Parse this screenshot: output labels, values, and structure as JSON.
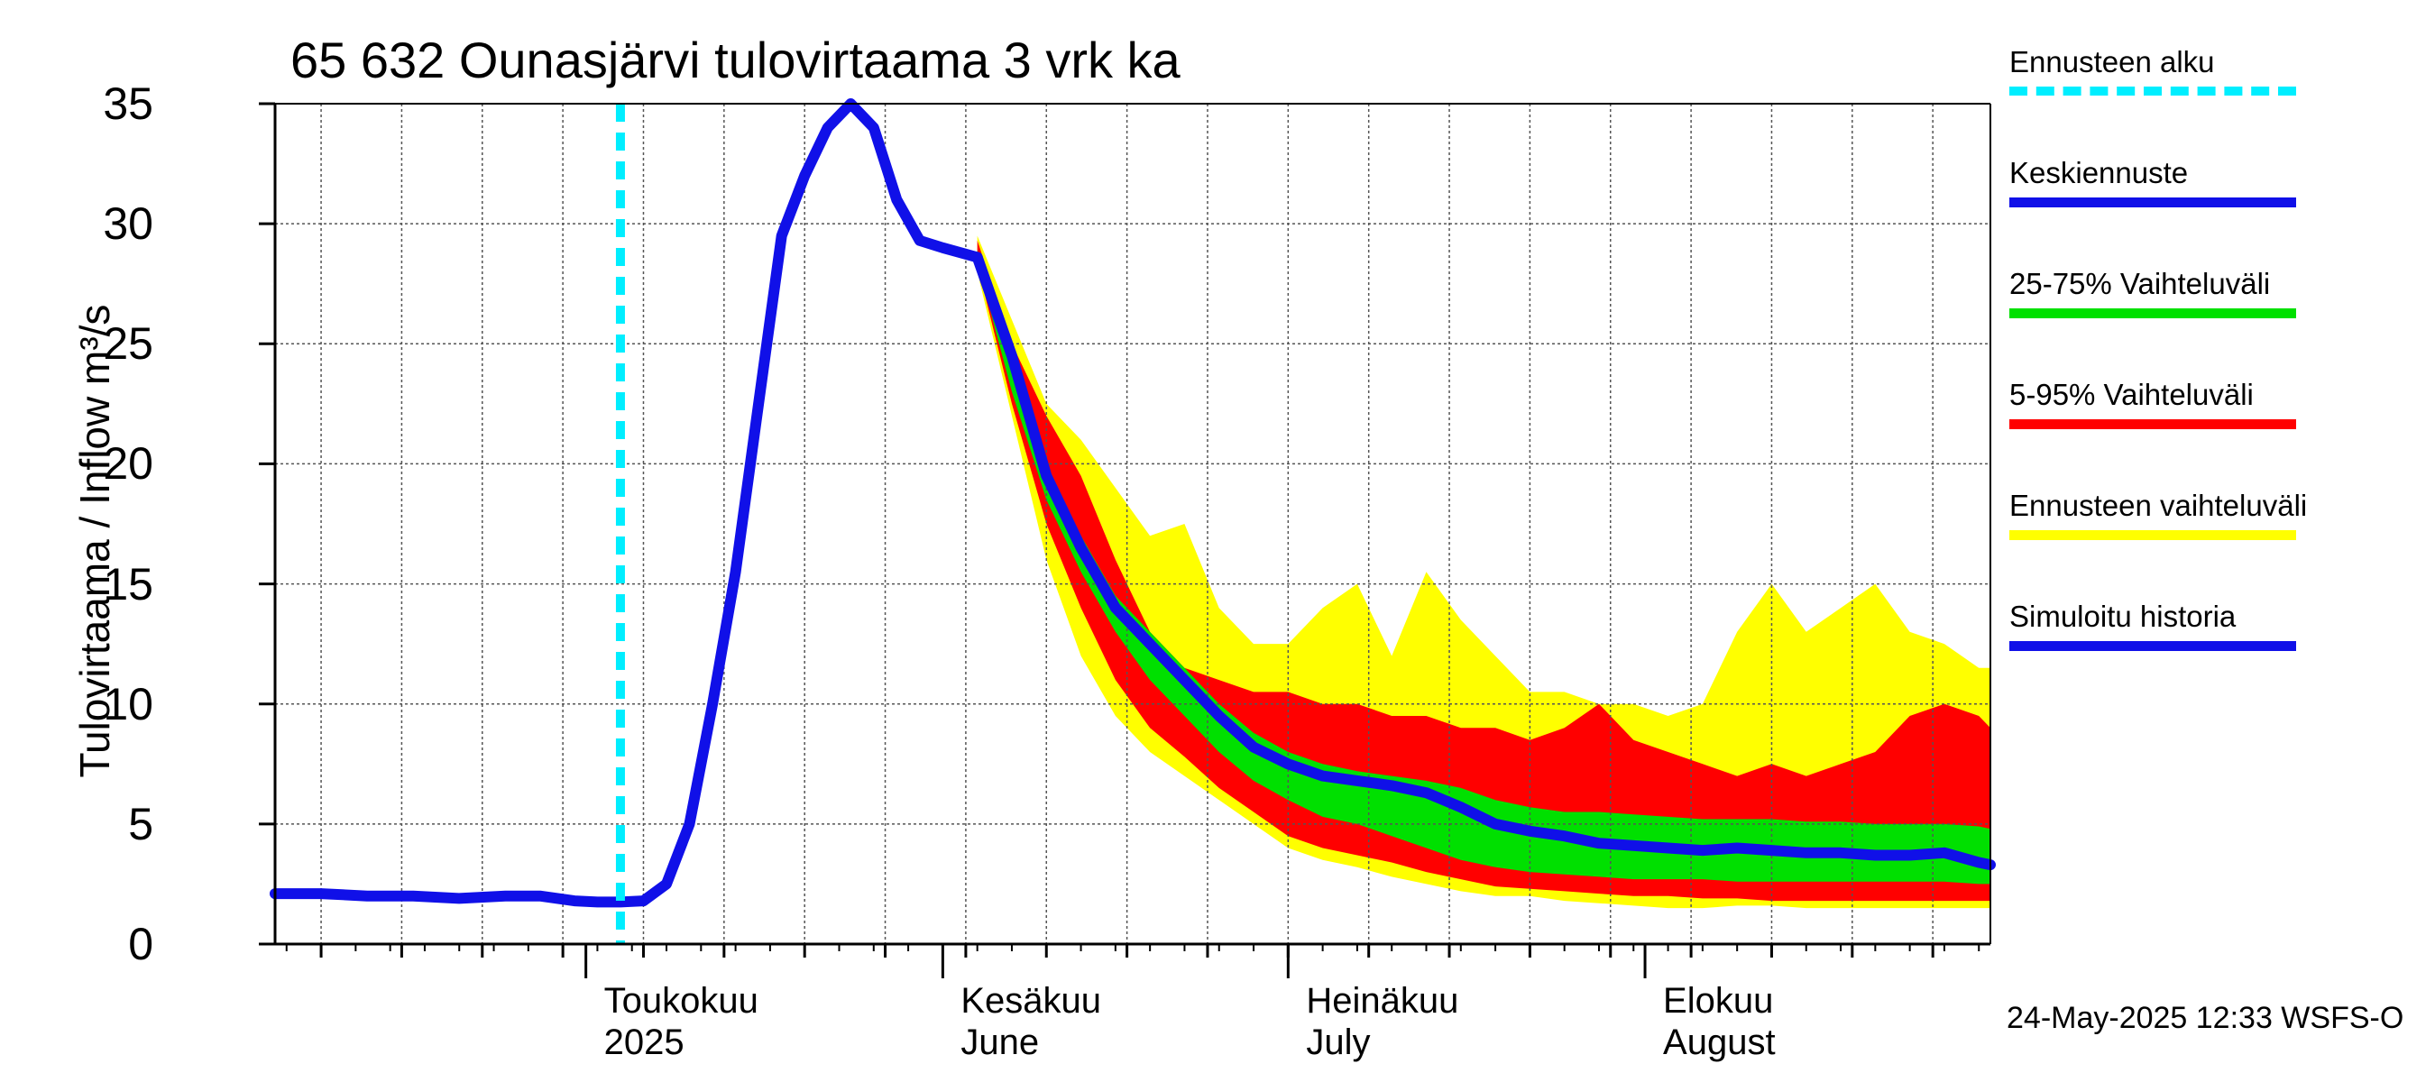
{
  "chart_data": {
    "type": "area",
    "title": "65 632 Ounasjärvi tulovirtaama 3 vrk ka",
    "ylabel": "Tulovirtaama / Inflow    m³/s",
    "ylim": [
      0,
      35
    ],
    "yticks": [
      "0",
      "5",
      "10",
      "15",
      "20",
      "25",
      "30",
      "35"
    ],
    "xlim": [
      "2025-04-04",
      "2025-08-31"
    ],
    "x_month_labels": [
      {
        "date": "2025-05-01",
        "line1": "Toukokuu",
        "line2": "2025"
      },
      {
        "date": "2025-06-01",
        "line1": "Kesäkuu",
        "line2": "June"
      },
      {
        "date": "2025-07-01",
        "line1": "Heinäkuu",
        "line2": "July"
      },
      {
        "date": "2025-08-01",
        "line1": "Elokuu",
        "line2": "August"
      }
    ],
    "grid": true,
    "forecast_start": "2025-05-04",
    "history_x": [
      "2025-04-04",
      "2025-04-08",
      "2025-04-12",
      "2025-04-16",
      "2025-04-20",
      "2025-04-24",
      "2025-04-27",
      "2025-04-30",
      "2025-05-02",
      "2025-05-04",
      "2025-05-06",
      "2025-05-08",
      "2025-05-10",
      "2025-05-12",
      "2025-05-14",
      "2025-05-16",
      "2025-05-18",
      "2025-05-20",
      "2025-05-22",
      "2025-05-24",
      "2025-05-26",
      "2025-05-28",
      "2025-05-30",
      "2025-06-01",
      "2025-06-04"
    ],
    "history_y": [
      2.1,
      2.1,
      2.0,
      2.0,
      1.9,
      2.0,
      2.0,
      1.8,
      1.75,
      1.75,
      1.8,
      2.5,
      5.0,
      10.0,
      15.5,
      22.5,
      29.5,
      32.0,
      34.0,
      35.0,
      34.0,
      31.0,
      29.3,
      29.0,
      28.6
    ],
    "fc_x": [
      "2025-06-04",
      "2025-06-07",
      "2025-06-10",
      "2025-06-13",
      "2025-06-16",
      "2025-06-19",
      "2025-06-22",
      "2025-06-25",
      "2025-06-28",
      "2025-07-01",
      "2025-07-04",
      "2025-07-07",
      "2025-07-10",
      "2025-07-13",
      "2025-07-16",
      "2025-07-19",
      "2025-07-22",
      "2025-07-25",
      "2025-07-28",
      "2025-07-31",
      "2025-08-03",
      "2025-08-06",
      "2025-08-09",
      "2025-08-12",
      "2025-08-15",
      "2025-08-18",
      "2025-08-21",
      "2025-08-24",
      "2025-08-27",
      "2025-08-30",
      "2025-08-31"
    ],
    "series": [
      {
        "name": "Keskiennuste",
        "color": "#1010e8",
        "values": [
          28.6,
          24.5,
          19.5,
          16.5,
          14.0,
          12.5,
          11.0,
          9.5,
          8.2,
          7.5,
          7.0,
          6.8,
          6.6,
          6.3,
          5.7,
          5.0,
          4.7,
          4.5,
          4.2,
          4.1,
          4.0,
          3.9,
          4.0,
          3.9,
          3.8,
          3.8,
          3.7,
          3.7,
          3.8,
          3.4,
          3.3
        ]
      }
    ],
    "bands": [
      {
        "name": "Ennusteen vaihteluväli",
        "color": "#ffff00",
        "upper": [
          29.5,
          26.0,
          22.5,
          21.0,
          19.0,
          17.0,
          17.5,
          14.0,
          12.5,
          12.5,
          14.0,
          15.0,
          12.0,
          15.5,
          13.5,
          12.0,
          10.5,
          10.5,
          10.0,
          10.0,
          9.5,
          10.0,
          13.0,
          15.0,
          13.0,
          14.0,
          15.0,
          13.0,
          12.5,
          11.5,
          11.5
        ],
        "lower": [
          28.0,
          22.0,
          16.0,
          12.0,
          9.5,
          8.0,
          7.0,
          6.0,
          5.0,
          4.0,
          3.5,
          3.2,
          2.8,
          2.5,
          2.2,
          2.0,
          2.0,
          1.8,
          1.7,
          1.6,
          1.5,
          1.5,
          1.6,
          1.6,
          1.5,
          1.5,
          1.5,
          1.5,
          1.5,
          1.5,
          1.5
        ]
      },
      {
        "name": "5-95% Vaihteluväli",
        "color": "#ff0000",
        "upper": [
          29.3,
          25.0,
          22.0,
          19.5,
          16.0,
          13.0,
          11.5,
          11.0,
          10.5,
          10.5,
          10.0,
          10.0,
          9.5,
          9.5,
          9.0,
          9.0,
          8.5,
          9.0,
          10.0,
          8.5,
          8.0,
          7.5,
          7.0,
          7.5,
          7.0,
          7.5,
          8.0,
          9.5,
          10.0,
          9.5,
          9.0
        ],
        "lower": [
          28.3,
          22.5,
          17.5,
          14.0,
          11.0,
          9.0,
          7.8,
          6.5,
          5.5,
          4.5,
          4.0,
          3.7,
          3.4,
          3.0,
          2.7,
          2.4,
          2.3,
          2.2,
          2.1,
          2.0,
          2.0,
          1.9,
          1.9,
          1.8,
          1.8,
          1.8,
          1.8,
          1.8,
          1.8,
          1.8,
          1.8
        ]
      },
      {
        "name": "25-75% Vaihteluväli",
        "color": "#00e000",
        "upper": [
          28.9,
          24.0,
          20.0,
          17.0,
          14.5,
          13.0,
          11.5,
          10.0,
          8.8,
          8.0,
          7.5,
          7.2,
          7.0,
          6.8,
          6.5,
          6.0,
          5.7,
          5.5,
          5.5,
          5.4,
          5.3,
          5.2,
          5.2,
          5.2,
          5.1,
          5.1,
          5.0,
          5.0,
          5.0,
          4.9,
          4.8
        ],
        "lower": [
          28.4,
          23.0,
          18.5,
          15.5,
          13.0,
          11.0,
          9.5,
          8.0,
          6.8,
          6.0,
          5.3,
          5.0,
          4.5,
          4.0,
          3.5,
          3.2,
          3.0,
          2.9,
          2.8,
          2.7,
          2.7,
          2.7,
          2.6,
          2.6,
          2.6,
          2.6,
          2.6,
          2.6,
          2.6,
          2.5,
          2.5
        ]
      }
    ]
  },
  "legend": {
    "items": [
      {
        "label": "Ennusteen alku",
        "color": "#00eeff",
        "style": "dashed"
      },
      {
        "label": "Keskiennuste",
        "color": "#1010e8",
        "style": "solid"
      },
      {
        "label": "25-75% Vaihteluväli",
        "color": "#00e000",
        "style": "solid"
      },
      {
        "label": "5-95% Vaihteluväli",
        "color": "#ff0000",
        "style": "solid"
      },
      {
        "label": "Ennusteen vaihteluväli",
        "color": "#ffff00",
        "style": "solid"
      },
      {
        "label": "Simuloitu historia",
        "color": "#1010e8",
        "style": "solid"
      }
    ]
  },
  "footer": "24-May-2025 12:33 WSFS-O"
}
